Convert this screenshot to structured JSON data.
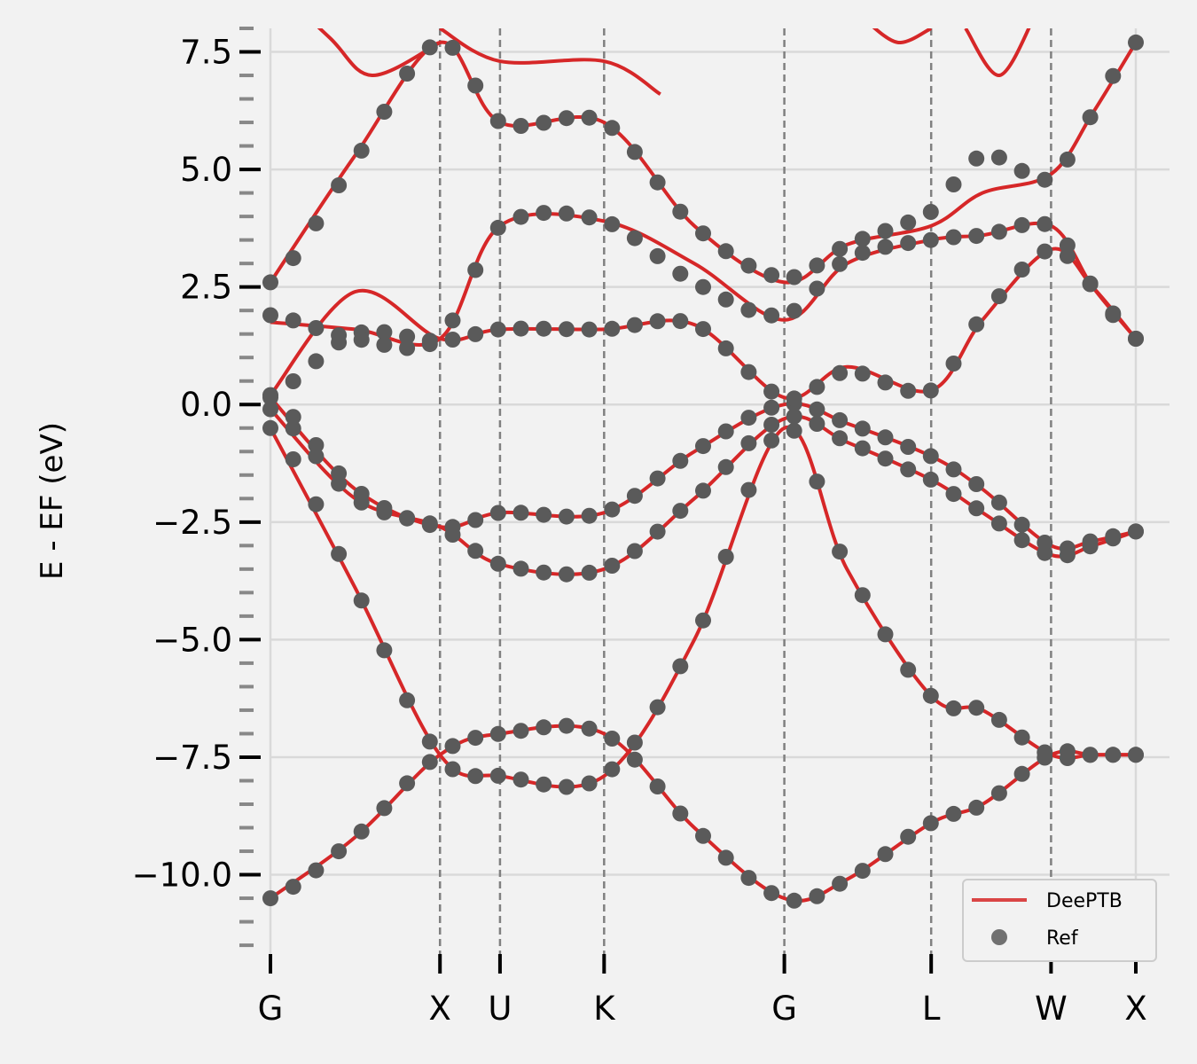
{
  "chart_data": {
    "type": "line",
    "ylabel": "E - EF (eV)",
    "xlabel": "",
    "ylim": [
      -11.8,
      8.0
    ],
    "yticks": [
      -10.0,
      -7.5,
      -5.0,
      -2.5,
      0.0,
      2.5,
      5.0,
      7.5
    ],
    "ytick_labels": [
      "−10.0",
      "−7.5",
      "−5.0",
      "−2.5",
      "0.0",
      "2.5",
      "5.0",
      "7.5"
    ],
    "kpath": [
      {
        "label": "G",
        "pos": 0.0
      },
      {
        "label": "X",
        "pos": 1.0
      },
      {
        "label": "U",
        "pos": 1.354
      },
      {
        "label": "K",
        "pos": 1.968
      },
      {
        "label": "G",
        "pos": 3.031
      },
      {
        "label": "L",
        "pos": 3.897
      },
      {
        "label": "W",
        "pos": 4.604
      },
      {
        "label": "X",
        "pos": 5.104
      }
    ],
    "grid": true,
    "legend_position": "lower-right",
    "colors": {
      "deeptb": "#d62728",
      "ref": "#5a5a5a",
      "kline": "#808080",
      "grid": "#d9d9d9"
    },
    "series": [
      {
        "name": "DeePTB",
        "style": "line",
        "bands": [
          {
            "x": [
              0,
              0.5,
              1.0,
              1.354,
              1.968,
              2.5,
              3.031,
              3.4,
              3.897,
              4.2,
              4.604,
              4.85,
              5.104
            ],
            "y": [
              -10.5,
              -9.2,
              -7.45,
              -7.0,
              -7.0,
              -9.0,
              -10.5,
              -10.1,
              -8.9,
              -8.5,
              -7.45,
              -7.45,
              -7.45
            ]
          },
          {
            "x": [
              0,
              0.5,
              1.0,
              1.354,
              1.968,
              2.5,
              3.031,
              3.4,
              3.897,
              4.2,
              4.604,
              4.85,
              5.104
            ],
            "y": [
              -0.5,
              -3.9,
              -7.45,
              -7.9,
              -7.9,
              -5.0,
              -0.5,
              -3.5,
              -6.2,
              -6.5,
              -7.45,
              -7.45,
              -7.45
            ]
          },
          {
            "x": [
              0,
              0.5,
              1.0,
              1.354,
              1.968,
              2.5,
              3.031,
              3.4,
              3.897,
              4.2,
              4.604,
              4.85,
              5.104
            ],
            "y": [
              -0.1,
              -2.0,
              -2.6,
              -3.4,
              -3.5,
              -2.0,
              -0.3,
              -0.8,
              -1.6,
              -2.3,
              -3.2,
              -3.0,
              -2.7
            ]
          },
          {
            "x": [
              0,
              0.5,
              1.0,
              1.354,
              1.968,
              2.5,
              3.031,
              3.4,
              3.897,
              4.2,
              4.604,
              4.85,
              5.104
            ],
            "y": [
              0.15,
              -1.8,
              -2.6,
              -2.3,
              -2.3,
              -1.0,
              0.0,
              -0.4,
              -1.1,
              -1.8,
              -3.0,
              -2.9,
              -2.7
            ]
          },
          {
            "x": [
              0,
              0.5,
              1.0,
              1.354,
              1.968,
              2.5,
              3.031,
              3.4,
              3.897,
              4.2,
              4.604,
              4.85,
              5.104
            ],
            "y": [
              0.2,
              2.4,
              1.4,
              1.6,
              1.6,
              1.7,
              0.15,
              0.8,
              0.3,
              1.8,
              3.3,
              2.5,
              1.4
            ]
          },
          {
            "x": [
              0,
              0.5,
              1.0,
              1.354,
              1.968,
              2.5,
              3.031,
              3.4,
              3.897,
              4.2,
              4.604,
              4.85,
              5.104
            ],
            "y": [
              1.75,
              1.6,
              1.4,
              3.8,
              3.9,
              3.0,
              1.8,
              3.0,
              3.5,
              3.6,
              3.8,
              2.5,
              1.4
            ]
          },
          {
            "x": [
              0,
              0.5,
              1.0,
              1.354,
              1.968,
              2.5,
              3.031,
              3.4,
              3.897,
              4.2,
              4.604,
              4.85,
              5.104
            ],
            "y": [
              2.6,
              5.3,
              7.7,
              6.0,
              6.0,
              3.8,
              2.6,
              3.4,
              3.8,
              4.5,
              4.9,
              6.2,
              7.7
            ]
          }
        ]
      },
      {
        "name": "Ref",
        "style": "points",
        "bands": [
          {
            "x": [
              0,
              0.5,
              1.0,
              1.354,
              1.968,
              2.5,
              3.031,
              3.4,
              3.897,
              4.2,
              4.604,
              4.85,
              5.104
            ],
            "y": [
              -10.5,
              -9.2,
              -7.45,
              -7.0,
              -7.0,
              -9.0,
              -10.5,
              -10.1,
              -8.9,
              -8.5,
              -7.45,
              -7.45,
              -7.45
            ]
          },
          {
            "x": [
              0,
              0.5,
              1.0,
              1.354,
              1.968,
              2.5,
              3.031,
              3.4,
              3.897,
              4.2,
              4.604,
              4.85,
              5.104
            ],
            "y": [
              -0.5,
              -3.9,
              -7.45,
              -7.9,
              -7.9,
              -5.0,
              -0.5,
              -3.5,
              -6.2,
              -6.5,
              -7.45,
              -7.45,
              -7.45
            ]
          },
          {
            "x": [
              0,
              0.5,
              1.0,
              1.354,
              1.968,
              2.5,
              3.031,
              3.4,
              3.897,
              4.2,
              4.604,
              4.85,
              5.104
            ],
            "y": [
              -0.1,
              -2.0,
              -2.6,
              -3.4,
              -3.5,
              -2.0,
              -0.3,
              -0.8,
              -1.6,
              -2.3,
              -3.2,
              -3.0,
              -2.7
            ]
          },
          {
            "x": [
              0,
              0.5,
              1.0,
              1.354,
              1.968,
              2.5,
              3.031,
              3.4,
              3.897,
              4.2,
              4.604,
              4.85,
              5.104
            ],
            "y": [
              0.15,
              -1.8,
              -2.6,
              -2.3,
              -2.3,
              -1.0,
              0.0,
              -0.4,
              -1.1,
              -1.8,
              -3.0,
              -2.9,
              -2.7
            ]
          },
          {
            "x": [
              0,
              0.5,
              1.0,
              1.354,
              1.968,
              2.5,
              3.031,
              3.4,
              3.897,
              4.2,
              4.604,
              4.85,
              5.104
            ],
            "y": [
              0.2,
              1.5,
              1.35,
              1.6,
              1.6,
              1.7,
              0.15,
              0.7,
              0.3,
              1.9,
              3.3,
              2.5,
              1.4
            ]
          },
          {
            "x": [
              0,
              0.5,
              1.0,
              1.354,
              1.968,
              2.5,
              3.031,
              3.4,
              3.897,
              4.2,
              4.604,
              4.85,
              5.104
            ],
            "y": [
              1.9,
              1.4,
              1.4,
              3.8,
              3.9,
              2.6,
              1.9,
              3.1,
              3.5,
              3.6,
              3.8,
              2.5,
              1.4
            ]
          },
          {
            "x": [
              0,
              0.5,
              1.0,
              1.354,
              1.968,
              2.5,
              3.031,
              3.4,
              3.897,
              4.2,
              4.604,
              4.85,
              5.104
            ],
            "y": [
              2.6,
              5.2,
              7.7,
              6.0,
              6.0,
              3.8,
              2.7,
              3.4,
              4.1,
              5.3,
              4.8,
              6.2,
              7.7
            ]
          }
        ]
      }
    ],
    "upper_bands": [
      {
        "x": [
          0,
          0.35,
          0.6,
          1.0
        ],
        "y": [
          9.0,
          7.8,
          7.0,
          7.7
        ]
      },
      {
        "x": [
          1.0,
          1.354,
          1.968,
          2.3
        ],
        "y": [
          8.0,
          7.3,
          7.3,
          6.6
        ]
      },
      {
        "x": [
          3.5,
          3.7,
          3.897
        ],
        "y": [
          8.2,
          7.7,
          8.0
        ]
      },
      {
        "x": [
          4.1,
          4.3,
          4.5
        ],
        "y": [
          8.0,
          7.0,
          8.2
        ]
      }
    ]
  }
}
